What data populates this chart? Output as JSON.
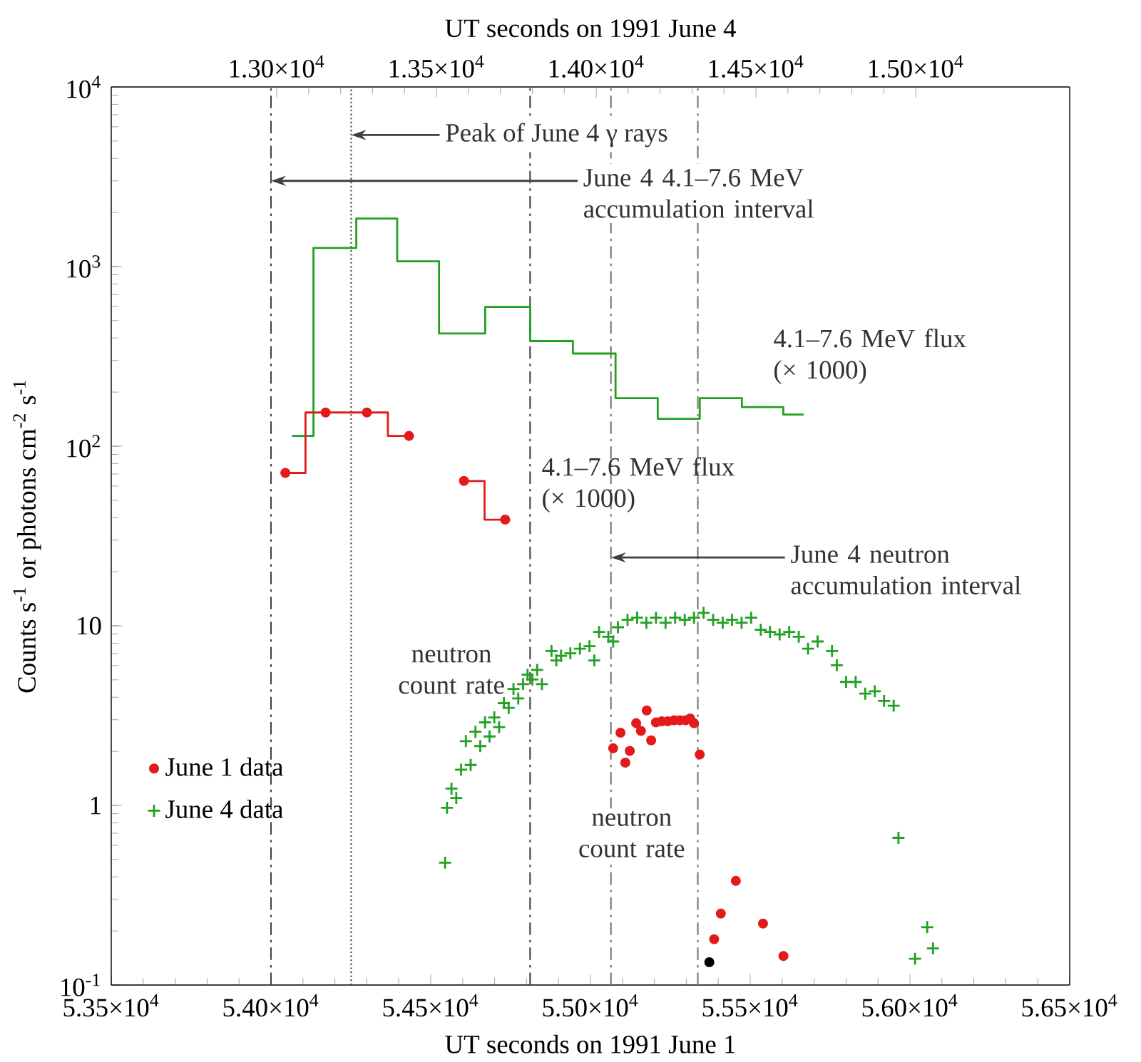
{
  "chart_data": {
    "type": "scatter",
    "xlabel": "UT seconds on 1991 June 1",
    "x2label": "UT seconds on 1991 June 4",
    "ylabel": "Counts s$^{-1}$ or photons cm$^{-2}$ s$^{-1}$",
    "xlim": [
      53500,
      56500
    ],
    "xticks": [
      {
        "value": 53500,
        "label": "5.35×10$^{4}$"
      },
      {
        "value": 54000,
        "label": "5.40×10$^{4}$"
      },
      {
        "value": 54500,
        "label": "5.45×10$^{4}$"
      },
      {
        "value": 55000,
        "label": "5.50×10$^{4}$"
      },
      {
        "value": 55500,
        "label": "5.55×10$^{4}$"
      },
      {
        "value": 56000,
        "label": "5.60×10$^{4}$"
      },
      {
        "value": 56500,
        "label": "5.65×10$^{4}$"
      }
    ],
    "x2lim": [
      12482,
      15482
    ],
    "x2ticks": [
      {
        "value": 13000,
        "label": "1.30×10$^{4}$"
      },
      {
        "value": 13500,
        "label": "1.35×10$^{4}$"
      },
      {
        "value": 14000,
        "label": "1.40×10$^{4}$"
      },
      {
        "value": 14500,
        "label": "1.45×10$^{4}$"
      },
      {
        "value": 15000,
        "label": "1.50×10$^{4}$"
      }
    ],
    "ylim": [
      0.1,
      10000
    ],
    "yticks": [
      {
        "value": 0.1,
        "label": "10$^{-1}$"
      },
      1,
      10,
      {
        "value": 100,
        "label": "10$^{2}$"
      },
      {
        "value": 1000,
        "label": "10$^{3}$"
      },
      {
        "value": 10000,
        "label": "10$^{4}$"
      }
    ],
    "log": "y",
    "legend": "bottom left",
    "series": [
      {
        "type": "step",
        "marker": "none",
        "color": "#22a022",
        "x": [
          54066,
          54200,
          54334,
          54456,
          54596,
          54745,
          54878,
          55012,
          55145,
          55276,
          55408,
          55540,
          55667
        ],
        "values": [
          114,
          1270,
          1850,
          1070,
          424,
          596,
          385,
          328,
          185,
          142,
          185,
          165,
          150
        ]
      },
      {
        "type": "step",
        "marker": "circle",
        "color": "#e31a1c",
        "x": [
          54045,
          54171,
          54300,
          54432,
          54518,
          54604,
          54733
        ],
        "values": [
          71,
          154,
          154,
          114,
          null,
          64,
          39
        ]
      },
      {
        "name": "June 1 data",
        "marker": "circle",
        "color": "#e31a1c",
        "x": [
          55071,
          55094,
          55109,
          55123,
          55143,
          55158,
          55176,
          55190,
          55205,
          55223,
          55242,
          55262,
          55280,
          55298,
          55312,
          55324,
          55342
        ],
        "values": [
          2.08,
          2.54,
          1.73,
          2.01,
          2.87,
          2.6,
          3.38,
          2.3,
          2.9,
          2.94,
          2.94,
          2.98,
          2.98,
          2.98,
          3.05,
          2.87,
          1.92
        ]
      },
      {
        "name": "June 4 data",
        "marker": "cross",
        "color": "#22a022",
        "x": [
          54545,
          54551,
          54565,
          54580,
          54595,
          54610,
          54625,
          54640,
          54655,
          54670,
          54684,
          54699,
          54714,
          54729,
          54744,
          54759,
          54774,
          54789,
          54803,
          54818,
          54833,
          54848,
          54878,
          54893,
          54908,
          54937,
          54967,
          54997,
          55012,
          55027,
          55056,
          55071,
          55086,
          55116,
          55146,
          55175,
          55205,
          55235,
          55265,
          55295,
          55324,
          55354,
          55384,
          55414,
          55443,
          55473,
          55503,
          55533,
          55562,
          55592,
          55622,
          55652,
          55681,
          55711,
          55756,
          55771,
          55800,
          55830,
          55860,
          55890,
          55919,
          55949
        ],
        "values": [
          0.48,
          0.97,
          1.24,
          1.1,
          1.58,
          2.28,
          1.68,
          2.57,
          2.14,
          2.9,
          2.42,
          3.09,
          2.73,
          3.71,
          3.49,
          4.45,
          3.94,
          4.73,
          5.34,
          5.02,
          5.68,
          4.73,
          7.24,
          6.41,
          6.81,
          7.03,
          7.46,
          7.7,
          6.41,
          9.24,
          8.69,
          8.18,
          9.82,
          10.8,
          11.1,
          10.4,
          11.1,
          10.4,
          11.1,
          10.8,
          11.1,
          11.8,
          10.8,
          10.4,
          10.8,
          10.4,
          11.1,
          9.5,
          9.24,
          8.96,
          9.24,
          8.69,
          7.46,
          8.18,
          7.24,
          6.03,
          4.87,
          4.87,
          4.19,
          4.32,
          3.82,
          3.59
        ]
      },
      {
        "marker": "circle",
        "color": "#e31a1c",
        "x": [
          55387,
          55408,
          55455,
          55540,
          55604
        ],
        "values": [
          0.18,
          0.25,
          0.38,
          0.22,
          0.145
        ]
      },
      {
        "marker": "circle",
        "color": "#000000",
        "x": [
          55372
        ],
        "values": [
          0.134
        ]
      },
      {
        "marker": "cross",
        "color": "#22a022",
        "x": [
          55964,
          56016,
          56054,
          56072
        ],
        "values": [
          0.66,
          0.14,
          0.21,
          0.16
        ]
      }
    ],
    "ref_lines": [
      {
        "axis": "x",
        "value": 54000,
        "line_style": "dashed",
        "color": "#444444"
      },
      {
        "axis": "x",
        "value": 54251,
        "line_style": "dotted",
        "color": "#444444"
      },
      {
        "axis": "x",
        "value": 54811,
        "line_style": "dashed",
        "color": "#444444"
      },
      {
        "axis": "x",
        "value": 55064,
        "line_style": "dashed",
        "color": "#777777"
      },
      {
        "axis": "x",
        "value": 55336,
        "line_style": "dashed",
        "color": "#777777"
      }
    ],
    "annotations": [
      {
        "text": "Peak of June 4 γ rays",
        "x": 54251,
        "y": 5400
      },
      {
        "text": "June 4 4.1–7.6 MeV accumulation interval",
        "x": 54000,
        "y": 3000
      },
      {
        "text": "June 4 neutron accumulation interval",
        "x": 55064,
        "y": 24
      },
      "4.1–7.6 MeV flux (× 1000)",
      {
        "text": "4.1–7.6 MeV flux (× 1000)",
        "x": 54830,
        "y": 61
      },
      "neutron count rate",
      "neutron count rate"
    ]
  }
}
